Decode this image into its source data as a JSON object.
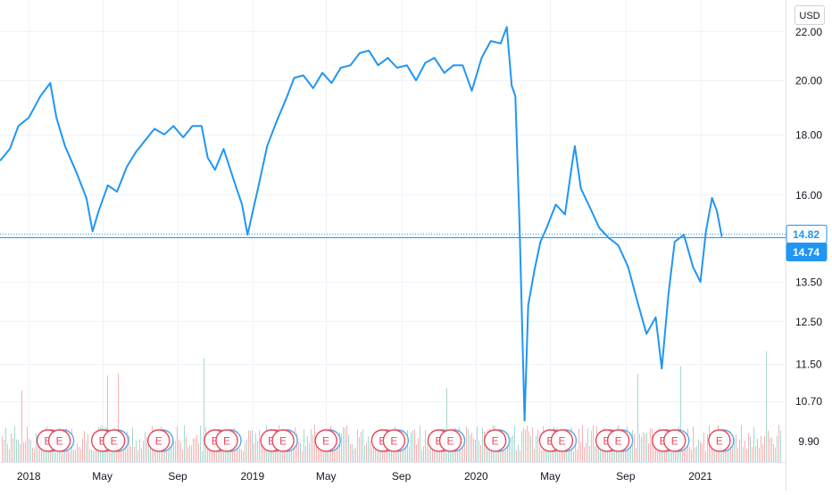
{
  "currency": "USD",
  "colors": {
    "line": "#2196f3",
    "price_label": "#2196f3",
    "volume_up": "#a8d8cf",
    "volume_down": "#f4b3b3",
    "event_border": "#e8485a",
    "event_text": "#e8485a",
    "grid": "#f0f3fa",
    "axis_text": "#131722"
  },
  "chart_data": {
    "type": "line",
    "x_tick_labels": [
      "2018",
      "May",
      "Sep",
      "2019",
      "May",
      "Sep",
      "2020",
      "May",
      "Sep",
      "2021"
    ],
    "y_tick_labels": [
      "22.00",
      "20.00",
      "18.00",
      "16.00",
      "13.50",
      "12.50",
      "11.50",
      "10.70",
      "9.90"
    ],
    "y_ticks": [
      22.0,
      20.0,
      18.0,
      16.0,
      13.5,
      12.5,
      11.5,
      10.7,
      9.9
    ],
    "y_scale": "log",
    "ylim": [
      9.5,
      23.4
    ],
    "xlim": [
      "2017-11-15",
      "2021-05-20"
    ],
    "grid": true,
    "price_labels": [
      {
        "label": "14.82",
        "value": 14.82,
        "style": "outline"
      },
      {
        "label": "14.74",
        "value": 14.74,
        "style": "filled"
      }
    ],
    "earnings_event_label": "E",
    "earnings_events": [
      "2018-02-01",
      "2018-02-20",
      "2018-05-01",
      "2018-05-20",
      "2018-08-01",
      "2018-11-01",
      "2018-11-20",
      "2019-02-01",
      "2019-02-20",
      "2019-05-01",
      "2019-08-01",
      "2019-08-20",
      "2019-11-01",
      "2019-11-20",
      "2020-02-01",
      "2020-05-01",
      "2020-05-20",
      "2020-08-01",
      "2020-08-20",
      "2020-11-01",
      "2020-11-20",
      "2021-02-01"
    ],
    "series": [
      {
        "values": [
          [
            "2017-11-15",
            17.1
          ],
          [
            "2017-12-01",
            17.5
          ],
          [
            "2017-12-15",
            18.3
          ],
          [
            "2018-01-01",
            18.6
          ],
          [
            "2018-01-20",
            19.4
          ],
          [
            "2018-02-05",
            19.9
          ],
          [
            "2018-02-15",
            18.6
          ],
          [
            "2018-03-01",
            17.6
          ],
          [
            "2018-03-20",
            16.7
          ],
          [
            "2018-04-05",
            15.9
          ],
          [
            "2018-04-15",
            14.9
          ],
          [
            "2018-04-25",
            15.5
          ],
          [
            "2018-05-10",
            16.3
          ],
          [
            "2018-05-25",
            16.1
          ],
          [
            "2018-06-10",
            16.9
          ],
          [
            "2018-06-25",
            17.4
          ],
          [
            "2018-07-10",
            17.8
          ],
          [
            "2018-07-25",
            18.2
          ],
          [
            "2018-08-10",
            18.0
          ],
          [
            "2018-08-25",
            18.3
          ],
          [
            "2018-09-10",
            17.9
          ],
          [
            "2018-09-25",
            18.3
          ],
          [
            "2018-10-10",
            18.3
          ],
          [
            "2018-10-20",
            17.2
          ],
          [
            "2018-11-01",
            16.8
          ],
          [
            "2018-11-15",
            17.5
          ],
          [
            "2018-12-01",
            16.5
          ],
          [
            "2018-12-15",
            15.7
          ],
          [
            "2018-12-24",
            14.8
          ],
          [
            "2019-01-10",
            16.2
          ],
          [
            "2019-01-25",
            17.6
          ],
          [
            "2019-02-10",
            18.5
          ],
          [
            "2019-02-25",
            19.3
          ],
          [
            "2019-03-10",
            20.1
          ],
          [
            "2019-03-25",
            20.2
          ],
          [
            "2019-04-10",
            19.7
          ],
          [
            "2019-04-25",
            20.3
          ],
          [
            "2019-05-10",
            19.9
          ],
          [
            "2019-05-25",
            20.5
          ],
          [
            "2019-06-10",
            20.6
          ],
          [
            "2019-06-25",
            21.1
          ],
          [
            "2019-07-10",
            21.2
          ],
          [
            "2019-07-25",
            20.6
          ],
          [
            "2019-08-10",
            20.9
          ],
          [
            "2019-08-25",
            20.5
          ],
          [
            "2019-09-10",
            20.6
          ],
          [
            "2019-09-25",
            20.0
          ],
          [
            "2019-10-10",
            20.7
          ],
          [
            "2019-10-25",
            20.9
          ],
          [
            "2019-11-10",
            20.3
          ],
          [
            "2019-11-25",
            20.6
          ],
          [
            "2019-12-10",
            20.6
          ],
          [
            "2019-12-25",
            19.6
          ],
          [
            "2020-01-10",
            20.9
          ],
          [
            "2020-01-25",
            21.6
          ],
          [
            "2020-02-10",
            21.5
          ],
          [
            "2020-02-20",
            22.2
          ],
          [
            "2020-02-28",
            19.8
          ],
          [
            "2020-03-05",
            19.4
          ],
          [
            "2020-03-12",
            15.0
          ],
          [
            "2020-03-20",
            10.3
          ],
          [
            "2020-03-26",
            12.9
          ],
          [
            "2020-04-05",
            13.8
          ],
          [
            "2020-04-15",
            14.6
          ],
          [
            "2020-04-25",
            15.0
          ],
          [
            "2020-05-10",
            15.7
          ],
          [
            "2020-05-25",
            15.4
          ],
          [
            "2020-06-05",
            16.9
          ],
          [
            "2020-06-10",
            17.6
          ],
          [
            "2020-06-20",
            16.2
          ],
          [
            "2020-07-05",
            15.6
          ],
          [
            "2020-07-20",
            15.0
          ],
          [
            "2020-08-05",
            14.7
          ],
          [
            "2020-08-20",
            14.5
          ],
          [
            "2020-09-05",
            13.9
          ],
          [
            "2020-09-20",
            13.0
          ],
          [
            "2020-10-05",
            12.2
          ],
          [
            "2020-10-20",
            12.6
          ],
          [
            "2020-10-30",
            11.4
          ],
          [
            "2020-11-10",
            13.2
          ],
          [
            "2020-11-20",
            14.6
          ],
          [
            "2020-12-05",
            14.8
          ],
          [
            "2020-12-20",
            13.9
          ],
          [
            "2021-01-01",
            13.5
          ],
          [
            "2021-01-10",
            14.9
          ],
          [
            "2021-01-20",
            15.9
          ],
          [
            "2021-01-28",
            15.5
          ],
          [
            "2021-02-05",
            14.74
          ]
        ]
      }
    ]
  }
}
